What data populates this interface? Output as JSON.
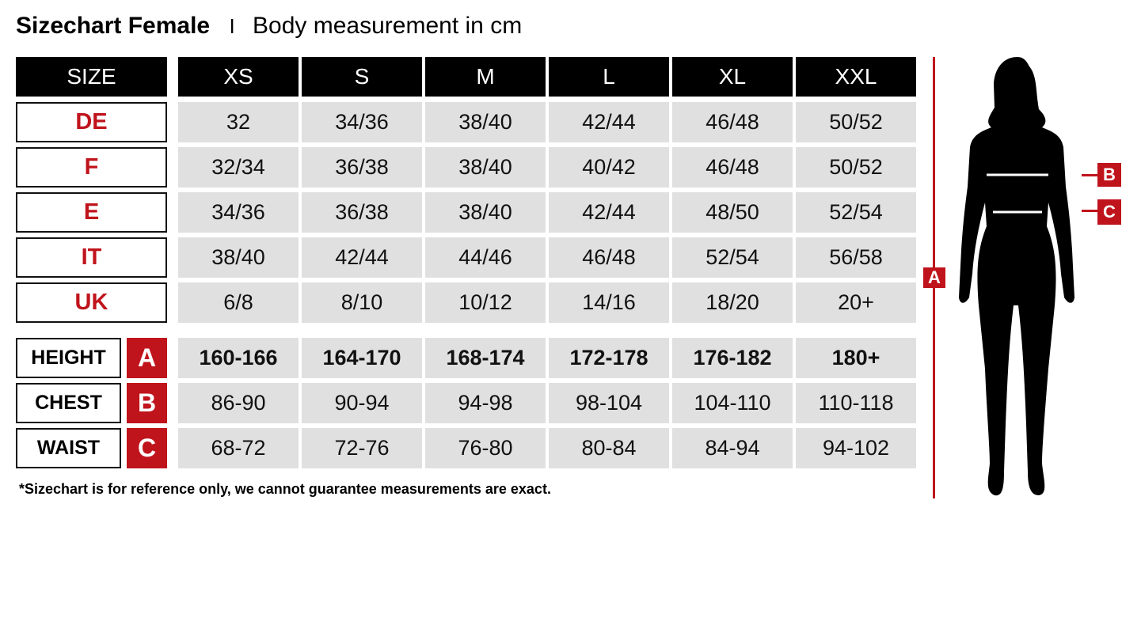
{
  "title": {
    "bold": "Sizechart Female",
    "separator": "I",
    "subtitle": "Body measurement in cm"
  },
  "header": {
    "size_label": "SIZE",
    "sizes": [
      "XS",
      "S",
      "M",
      "L",
      "XL",
      "XXL"
    ]
  },
  "conversion_rows": [
    {
      "label": "DE",
      "values": [
        "32",
        "34/36",
        "38/40",
        "42/44",
        "46/48",
        "50/52"
      ]
    },
    {
      "label": "F",
      "values": [
        "32/34",
        "36/38",
        "38/40",
        "40/42",
        "46/48",
        "50/52"
      ]
    },
    {
      "label": "E",
      "values": [
        "34/36",
        "36/38",
        "38/40",
        "42/44",
        "48/50",
        "52/54"
      ]
    },
    {
      "label": "IT",
      "values": [
        "38/40",
        "42/44",
        "44/46",
        "46/48",
        "52/54",
        "56/58"
      ]
    },
    {
      "label": "UK",
      "values": [
        "6/8",
        "8/10",
        "10/12",
        "14/16",
        "18/20",
        "20+"
      ]
    }
  ],
  "measurement_rows": [
    {
      "label": "HEIGHT",
      "letter": "A",
      "values": [
        "160-166",
        "164-170",
        "168-174",
        "172-178",
        "176-182",
        "180+"
      ]
    },
    {
      "label": "CHEST",
      "letter": "B",
      "values": [
        "86-90",
        "90-94",
        "94-98",
        "98-104",
        "104-110",
        "110-118"
      ]
    },
    {
      "label": "WAIST",
      "letter": "C",
      "values": [
        "68-72",
        "72-76",
        "76-80",
        "80-84",
        "84-94",
        "94-102"
      ]
    }
  ],
  "footnote": "*Sizechart is for reference only, we cannot guarantee measurements are exact.",
  "figure": {
    "height_tag": "A",
    "chest_tag": "B",
    "waist_tag": "C"
  },
  "colors": {
    "accent": "#c0141c",
    "header_bg": "#000000",
    "cell_bg": "#e0e0e0"
  }
}
